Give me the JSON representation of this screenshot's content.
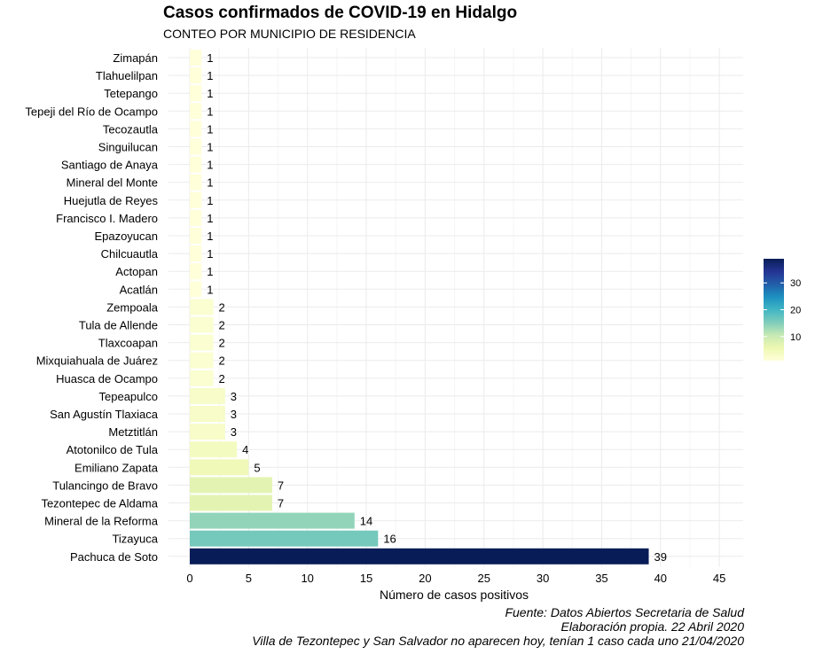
{
  "chart_data": {
    "type": "bar",
    "orientation": "horizontal",
    "title": "Casos confirmados de COVID-19 en Hidalgo",
    "subtitle": "CONTEO POR MUNICIPIO DE RESIDENCIA",
    "xlabel": "Número de casos positivos",
    "ylabel": "",
    "xlim": [
      0,
      47
    ],
    "xticks": [
      0,
      5,
      10,
      15,
      20,
      25,
      30,
      35,
      40,
      45
    ],
    "grid": true,
    "categories": [
      "Zimapán",
      "Tlahuelilpan",
      "Tetepango",
      "Tepeji del Río de Ocampo",
      "Tecozautla",
      "Singuilucan",
      "Santiago de Anaya",
      "Mineral del Monte",
      "Huejutla de Reyes",
      "Francisco I. Madero",
      "Epazoyucan",
      "Chilcuautla",
      "Actopan",
      "Acatlán",
      "Zempoala",
      "Tula de Allende",
      "Tlaxcoapan",
      "Mixquiahuala de Juárez",
      "Huasca de Ocampo",
      "Tepeapulco",
      "San Agustín Tlaxiaca",
      "Metztitlán",
      "Atotonilco de Tula",
      "Emiliano Zapata",
      "Tulancingo de Bravo",
      "Tezontepec de Aldama",
      "Mineral de la Reforma",
      "Tizayuca",
      "Pachuca de Soto"
    ],
    "values": [
      1,
      1,
      1,
      1,
      1,
      1,
      1,
      1,
      1,
      1,
      1,
      1,
      1,
      1,
      2,
      2,
      2,
      2,
      2,
      3,
      3,
      3,
      4,
      5,
      7,
      7,
      14,
      16,
      39
    ],
    "legend": {
      "position": "right",
      "type": "colorbar",
      "ticks": [
        10,
        20,
        30
      ],
      "colors": [
        "#ffffd9",
        "#edf8b1",
        "#c7e9b4",
        "#7fcdbb",
        "#41b6c4",
        "#1d91c0",
        "#225ea8",
        "#253494",
        "#081d58"
      ],
      "range": [
        1,
        39
      ]
    }
  },
  "captions": [
    "Fuente: Datos Abiertos Secretaria de Salud",
    "Elaboración propia. 22 Abril 2020",
    "Villa de Tezontepec y San Salvador no aparecen hoy, tenían 1 caso cada uno 21/04/2020"
  ]
}
